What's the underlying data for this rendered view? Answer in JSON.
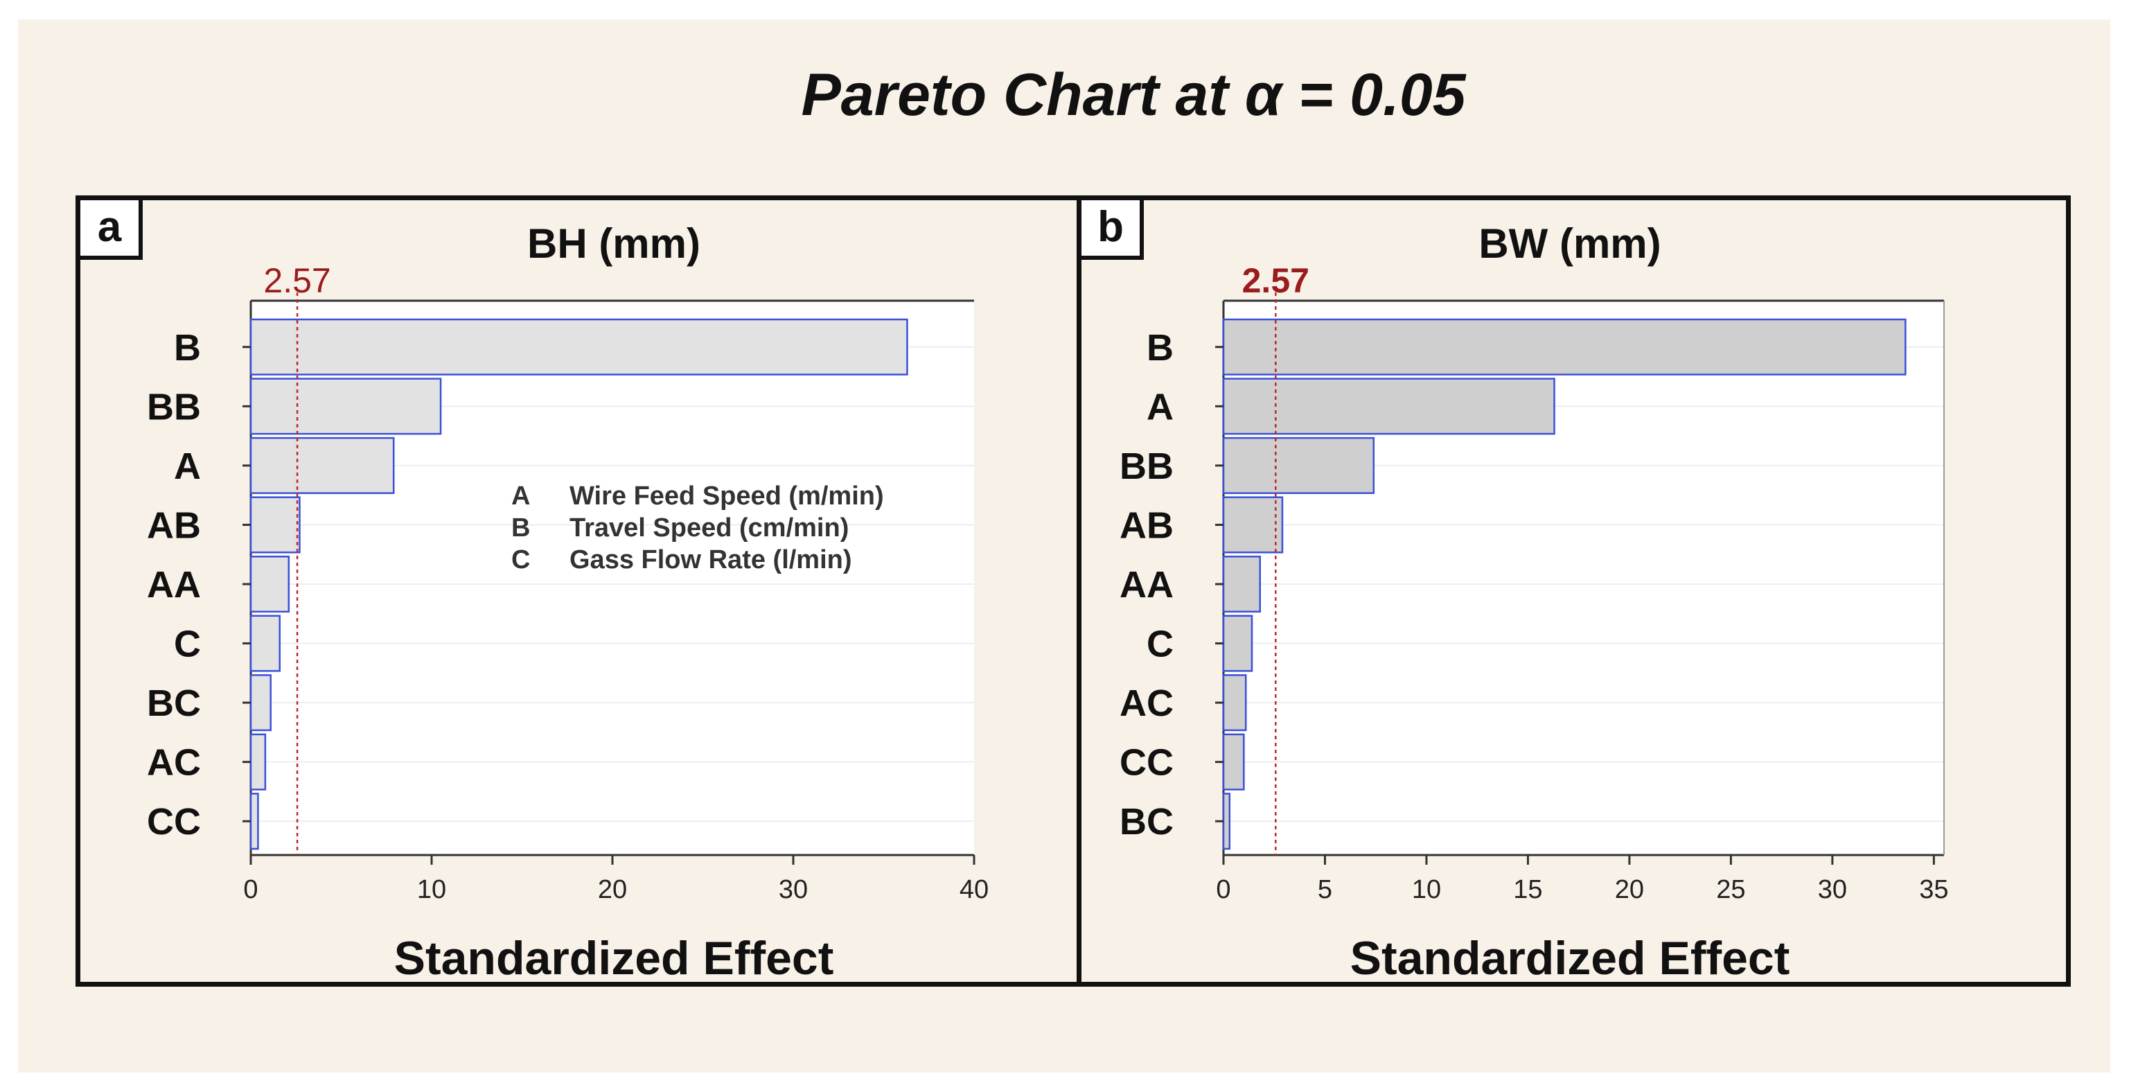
{
  "figure": {
    "title": "Pareto Chart at α = 0.05"
  },
  "chart_data": [
    {
      "type": "bar",
      "orientation": "horizontal",
      "panel_label": "a",
      "title": "BH (mm)",
      "xlabel": "Standardized Effect",
      "ylabel": "",
      "categories": [
        "B",
        "BB",
        "A",
        "AB",
        "AA",
        "C",
        "BC",
        "AC",
        "CC"
      ],
      "values": [
        36.3,
        10.5,
        7.9,
        2.7,
        2.1,
        1.6,
        1.1,
        0.8,
        0.4
      ],
      "xlim": [
        0,
        40
      ],
      "xticks": [
        "0",
        "10",
        "20",
        "30",
        "40"
      ],
      "reference_line": {
        "value": 2.57,
        "label": "2.57"
      },
      "legend": [
        {
          "key": "A",
          "label": "Wire Feed Speed  (m/min)"
        },
        {
          "key": "B",
          "label": "Travel Speed (cm/min)"
        },
        {
          "key": "C",
          "label": "Gass Flow Rate (l/min)"
        }
      ],
      "bar_color": "#e2e2e2",
      "bar_edge_color": "#3b4fd8",
      "reference_color": "#c0262d"
    },
    {
      "type": "bar",
      "orientation": "horizontal",
      "panel_label": "b",
      "title": "BW (mm)",
      "xlabel": "Standardized Effect",
      "ylabel": "",
      "categories": [
        "B",
        "A",
        "BB",
        "AB",
        "AA",
        "C",
        "AC",
        "CC",
        "BC"
      ],
      "values": [
        33.6,
        16.3,
        7.4,
        2.9,
        1.8,
        1.4,
        1.1,
        1.0,
        0.3
      ],
      "xlim": [
        0,
        35.5
      ],
      "xticks": [
        "0",
        "5",
        "10",
        "15",
        "20",
        "25",
        "30",
        "35"
      ],
      "reference_line": {
        "value": 2.57,
        "label": "2.57"
      },
      "legend": [],
      "bar_color": "#cfcfcf",
      "bar_edge_color": "#3b4fd8",
      "reference_color": "#c0262d"
    }
  ]
}
